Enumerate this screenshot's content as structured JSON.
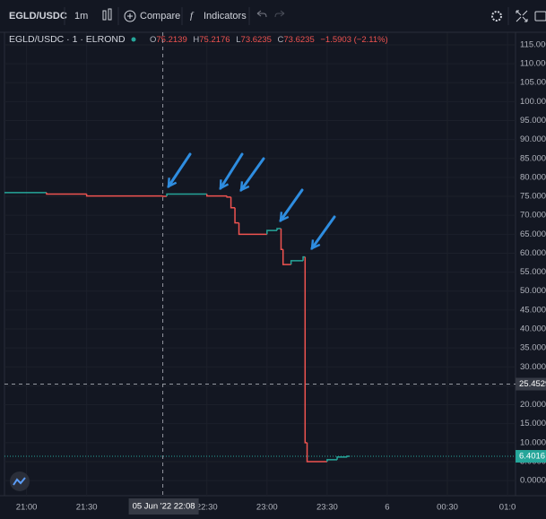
{
  "toolbar": {
    "symbol": "EGLD/USDC",
    "interval": "1m",
    "compare": "Compare",
    "indicators": "Indicators"
  },
  "chart_data": {
    "type": "step",
    "title": "EGLD/USDC · 1 · ELROND",
    "ohlc": [
      {
        "label": "O",
        "value": 75.2139
      },
      {
        "label": "H",
        "value": 75.2176
      },
      {
        "label": "L",
        "value": 73.6235
      },
      {
        "label": "C",
        "value": 73.6235
      }
    ],
    "change": "−1.5903 (−2.11%)",
    "x": [
      "20:49",
      "21:10",
      "21:30",
      "22:08",
      "22:10",
      "22:30",
      "22:40",
      "22:42",
      "22:44",
      "22:46",
      "23:00",
      "23:05",
      "23:07",
      "23:08",
      "23:12",
      "23:18",
      "23:19",
      "23:20",
      "23:30",
      "23:35",
      "23:40"
    ],
    "values": [
      76,
      75.6,
      75.1,
      75,
      75.6,
      75.1,
      74.8,
      72,
      68,
      65,
      66,
      66.5,
      61,
      57,
      58,
      59,
      10,
      5,
      5.5,
      6.2,
      6.4016
    ],
    "up_color": "#26a69a",
    "down_color": "#ef5350",
    "xlim": [
      "20:49",
      "01:04"
    ],
    "xticks": [
      {
        "value": "21:00",
        "label": "21:00"
      },
      {
        "value": "21:30",
        "label": "21:30"
      },
      {
        "value": "22:30",
        "label": "22:30"
      },
      {
        "value": "23:00",
        "label": "23:00"
      },
      {
        "value": "23:30",
        "label": "23:30"
      },
      {
        "value": "00:00",
        "label": "6"
      },
      {
        "value": "00:30",
        "label": "00:30"
      },
      {
        "value": "01:00",
        "label": "01:0"
      }
    ],
    "ylim": [
      -4,
      118.3
    ],
    "yticks": [
      {
        "value": 0,
        "label": "0.0000"
      },
      {
        "value": 5,
        "label": "5.0000"
      },
      {
        "value": 10,
        "label": "10.0000"
      },
      {
        "value": 15,
        "label": "15.0000"
      },
      {
        "value": 20,
        "label": "20.0000"
      },
      {
        "value": 25,
        "label": "25.0000"
      },
      {
        "value": 30,
        "label": "30.0000"
      },
      {
        "value": 35,
        "label": "35.0000"
      },
      {
        "value": 40,
        "label": "40.0000"
      },
      {
        "value": 45,
        "label": "45.0000"
      },
      {
        "value": 50,
        "label": "50.0000"
      },
      {
        "value": 55,
        "label": "55.0000"
      },
      {
        "value": 60,
        "label": "60.0000"
      },
      {
        "value": 65,
        "label": "65.0000"
      },
      {
        "value": 70,
        "label": "70.0000"
      },
      {
        "value": 75,
        "label": "75.0000"
      },
      {
        "value": 80,
        "label": "80.0000"
      },
      {
        "value": 85,
        "label": "85.0000"
      },
      {
        "value": 90,
        "label": "90.0000"
      },
      {
        "value": 95,
        "label": "95.0000"
      },
      {
        "value": 100,
        "label": "100.0000"
      },
      {
        "value": 105,
        "label": "105.0000"
      },
      {
        "value": 110,
        "label": "110.0000"
      },
      {
        "value": 115,
        "label": "115.0000"
      }
    ],
    "grid": true,
    "crosshair": {
      "x": "22:08",
      "y": 25.4529,
      "x_label": "05 Jun '22  22:08"
    },
    "last_price": 6.4016
  }
}
